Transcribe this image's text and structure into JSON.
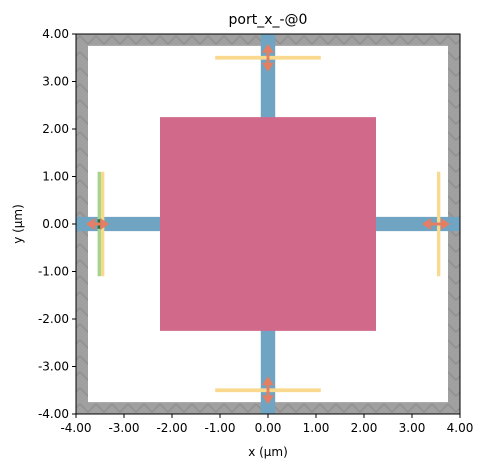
{
  "chart_data": {
    "type": "diagram",
    "title": "port_x_-@0",
    "xlabel": "x (µm)",
    "ylabel": "y (µm)",
    "xlim": [
      -4.0,
      4.0
    ],
    "ylim": [
      -4.0,
      4.0
    ],
    "xticks": [
      "-4.00",
      "-3.00",
      "-2.00",
      "-1.00",
      "0.00",
      "1.00",
      "2.00",
      "3.00",
      "4.00"
    ],
    "yticks": [
      "-4.00",
      "-3.00",
      "-2.00",
      "-1.00",
      "0.00",
      "1.00",
      "2.00",
      "3.00",
      "4.00"
    ],
    "tick_values": [
      -4,
      -3,
      -2,
      -1,
      0,
      1,
      2,
      3,
      4
    ],
    "structures": {
      "pml_boundary": {
        "color": "#a0a0a0",
        "thickness": 0.25
      },
      "box": {
        "x": [
          -2.25,
          2.25
        ],
        "y": [
          -2.25,
          2.25
        ],
        "color": "#d1698b"
      },
      "waveguide_x": {
        "half_width": 0.15,
        "x": [
          -4.0,
          4.0
        ],
        "color": "#6fa4c2"
      },
      "waveguide_y": {
        "half_width": 0.15,
        "y": [
          -4.0,
          4.0
        ],
        "color": "#6fa4c2"
      }
    },
    "monitors": [
      {
        "orientation": "vertical",
        "x": -3.5,
        "y": [
          -1.1,
          1.1
        ],
        "color": "#f8d98e"
      },
      {
        "orientation": "vertical",
        "x": 3.5,
        "y": [
          -1.1,
          1.1
        ],
        "color": "#f8d98e"
      },
      {
        "orientation": "horizontal",
        "y": 3.5,
        "x": [
          -1.1,
          1.1
        ],
        "color": "#f8d98e"
      },
      {
        "orientation": "horizontal",
        "y": -3.5,
        "x": [
          -1.1,
          1.1
        ],
        "color": "#f8d98e"
      }
    ],
    "source": {
      "x": -3.5,
      "y": [
        -1.1,
        1.1
      ],
      "color": "#a6d48f"
    },
    "arrow_color": "#e47f63"
  }
}
